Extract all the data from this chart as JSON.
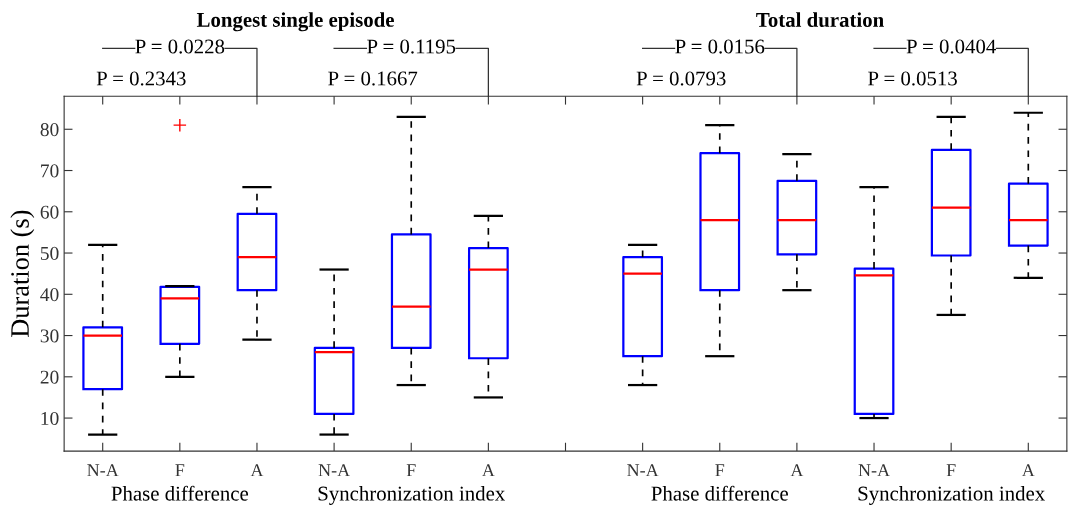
{
  "chart_data": {
    "type": "box",
    "ylabel": "Duration (s)",
    "categories": [
      "N-A",
      "F",
      "A",
      "N-A",
      "F",
      "A",
      null,
      "N-A",
      "F",
      "A",
      "N-A",
      "F",
      "A"
    ],
    "boxes": [
      {
        "low": 6,
        "q1": 17,
        "median": 30,
        "q3": 32,
        "high": 52
      },
      {
        "low": 20,
        "q1": 28,
        "median": 39,
        "q3": 41.8,
        "high": 42,
        "outliers": [
          81
        ]
      },
      {
        "low": 29,
        "q1": 41,
        "median": 49,
        "q3": 59.5,
        "high": 66
      },
      {
        "low": 6,
        "q1": 11,
        "median": 26,
        "q3": 27,
        "high": 46
      },
      {
        "low": 18,
        "q1": 27,
        "median": 37,
        "q3": 54.5,
        "high": 83
      },
      {
        "low": 15,
        "q1": 24.5,
        "median": 46,
        "q3": 51.2,
        "high": 59
      },
      null,
      {
        "low": 18,
        "q1": 25,
        "median": 45,
        "q3": 49,
        "high": 52
      },
      {
        "low": 25,
        "q1": 41,
        "median": 58,
        "q3": 74.2,
        "high": 81
      },
      {
        "low": 41,
        "q1": 49.7,
        "median": 58,
        "q3": 67.5,
        "high": 74
      },
      {
        "low": 10,
        "q1": 11,
        "median": 44.6,
        "q3": 46.2,
        "high": 66
      },
      {
        "low": 35,
        "q1": 49.4,
        "median": 61,
        "q3": 75,
        "high": 83
      },
      {
        "low": 44,
        "q1": 51.8,
        "median": 58,
        "q3": 66.8,
        "high": 84
      }
    ],
    "color": "#0000ff",
    "ylim": [
      2,
      88
    ],
    "yticks": [
      10,
      20,
      30,
      40,
      50,
      60,
      70,
      80
    ],
    "grid": false,
    "annotations": [
      "Longest single episode",
      "Total duration",
      "P = 0.0228",
      "P = 0.2343",
      "P = 0.1195",
      "P = 0.1667",
      "P = 0.0156",
      "P = 0.0793",
      "P = 0.0404",
      "P = 0.0513",
      "Phase difference",
      "Synchronization index",
      "Phase difference",
      "Synchronization index"
    ]
  }
}
